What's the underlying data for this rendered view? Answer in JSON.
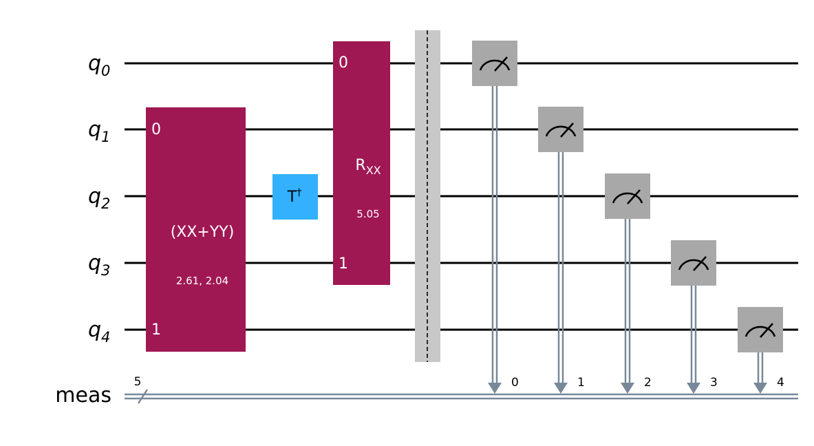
{
  "qubits": [
    {
      "base": "q",
      "sub": "0"
    },
    {
      "base": "q",
      "sub": "1"
    },
    {
      "base": "q",
      "sub": "2"
    },
    {
      "base": "q",
      "sub": "3"
    },
    {
      "base": "q",
      "sub": "4"
    }
  ],
  "classical_register": {
    "label": "meas",
    "width_label": "5"
  },
  "gates": {
    "xx_plus_yy": {
      "name": "(XX+YY)",
      "params": "2.61, 2.04",
      "port_top": "0",
      "port_bottom": "1",
      "color": "#9f1853"
    },
    "tdg": {
      "base": "T",
      "sup": "†",
      "color": "#33b1ff"
    },
    "rxx": {
      "base": "R",
      "sub": "XX",
      "params": "5.05",
      "port_top": "0",
      "port_bottom": "1",
      "color": "#9f1853"
    }
  },
  "barrier": {
    "color": "#c8c8c8"
  },
  "measurements": {
    "color": "#a8a8a8",
    "wire_color": "#778899",
    "bit_labels": [
      "0",
      "1",
      "2",
      "3",
      "4"
    ]
  }
}
